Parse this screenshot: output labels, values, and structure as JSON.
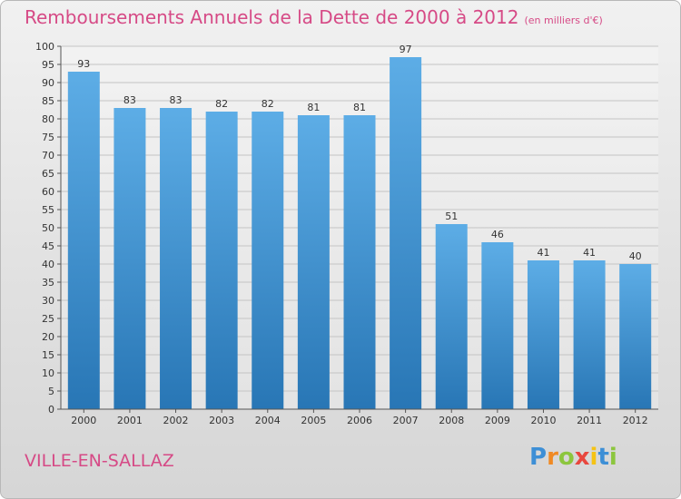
{
  "header": {
    "title": "Remboursements Annuels de la Dette de 2000 à 2012",
    "subtitle": "(en milliers d'€)"
  },
  "footer": {
    "commune": "VILLE-EN-SALLAZ",
    "logo_letters": [
      "P",
      "r",
      "o",
      "x",
      "i",
      "t",
      "i"
    ]
  },
  "colors": {
    "title": "#d64a86",
    "bar_top": "#5dade6",
    "bar_bottom": "#2876b5",
    "logo": [
      "#3d8fd6",
      "#f08a24",
      "#8cc63e",
      "#e8473e",
      "#f5c314",
      "#3d8fd6",
      "#8cc63e"
    ]
  },
  "chart_data": {
    "type": "bar",
    "categories": [
      "2000",
      "2001",
      "2002",
      "2003",
      "2004",
      "2005",
      "2006",
      "2007",
      "2008",
      "2009",
      "2010",
      "2011",
      "2012"
    ],
    "values": [
      93,
      83,
      83,
      82,
      82,
      81,
      81,
      97,
      51,
      46,
      41,
      41,
      40
    ],
    "ylim": [
      0,
      100
    ],
    "ytick_step": 5,
    "grid": true,
    "title": "Remboursements Annuels de la Dette de 2000 à 2012",
    "xlabel": "",
    "ylabel": ""
  }
}
